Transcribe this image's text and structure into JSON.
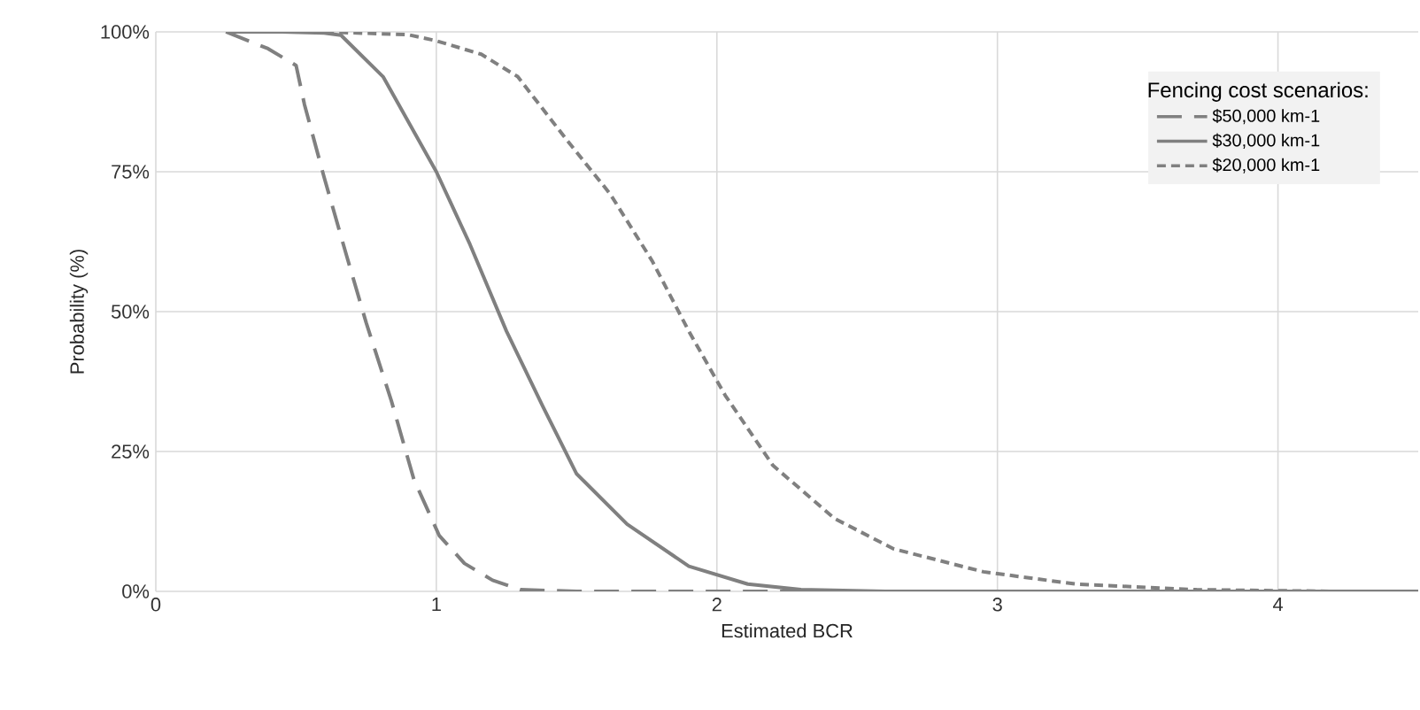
{
  "chart_data": {
    "type": "line",
    "xlabel": "Estimated BCR",
    "ylabel": "Probability (%)",
    "legend_title": "Fencing cost scenarios:",
    "xlim": [
      0,
      4.5
    ],
    "ylim": [
      0,
      100
    ],
    "xticks": [
      0,
      1,
      2,
      3,
      4
    ],
    "yticks": [
      {
        "value": 0,
        "label": "0%"
      },
      {
        "value": 25,
        "label": "25%"
      },
      {
        "value": 50,
        "label": "50%"
      },
      {
        "value": 75,
        "label": "75%"
      },
      {
        "value": 100,
        "label": "100%"
      }
    ],
    "grid": true,
    "legend": "top right",
    "marker": "none",
    "series": [
      {
        "name": "$50,000 km-1",
        "color": "#808080",
        "line_style": "dashed",
        "x": [
          0.25,
          0.4,
          0.5,
          0.53,
          0.6,
          0.68,
          0.75,
          0.84,
          0.92,
          1.01,
          1.1,
          1.2,
          1.3,
          1.5,
          2,
          3,
          4,
          4.5
        ],
        "values": [
          100,
          97,
          94,
          87,
          74,
          60,
          48,
          34,
          20,
          10,
          5,
          2,
          0.3,
          0,
          0,
          0,
          0,
          0
        ]
      },
      {
        "name": "$30,000 km-1",
        "color": "#808080",
        "line_style": "solid",
        "x": [
          0.25,
          0.45,
          0.6,
          0.66,
          0.81,
          1.0,
          1.12,
          1.25,
          1.38,
          1.5,
          1.68,
          1.9,
          2.11,
          2.3,
          2.6,
          3,
          4,
          4.5
        ],
        "values": [
          100,
          100,
          99.8,
          99.4,
          92,
          75,
          62,
          46.5,
          33,
          21,
          12,
          4.5,
          1.3,
          0.3,
          0,
          0,
          0,
          0
        ]
      },
      {
        "name": "$20,000 km-1",
        "color": "#808080",
        "line_style": "dotted",
        "x": [
          0.25,
          0.6,
          0.9,
          1.0,
          1.16,
          1.29,
          1.46,
          1.62,
          1.77,
          1.9,
          2.03,
          2.2,
          2.42,
          2.63,
          2.95,
          3.28,
          3.71,
          4.2,
          4.5
        ],
        "values": [
          100,
          100,
          99.5,
          98.4,
          96,
          92,
          81,
          71,
          59,
          46.5,
          35,
          22.5,
          13,
          7.6,
          3.5,
          1.3,
          0.3,
          0,
          0
        ]
      }
    ]
  }
}
